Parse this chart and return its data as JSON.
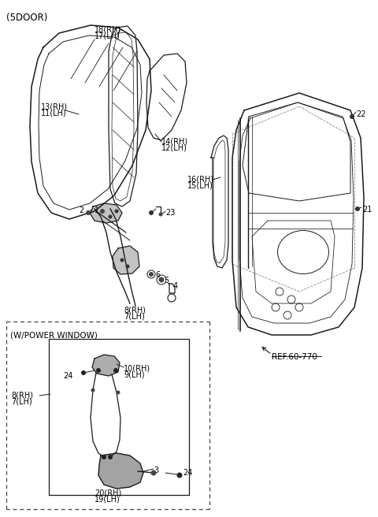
{
  "bg_color": "#ffffff",
  "line_color": "#1a1a1a",
  "text_color": "#000000",
  "header_text": "(5DOOR)",
  "ref_text": "REF.60-770",
  "power_window_label": "(W/POWER WINDOW)"
}
